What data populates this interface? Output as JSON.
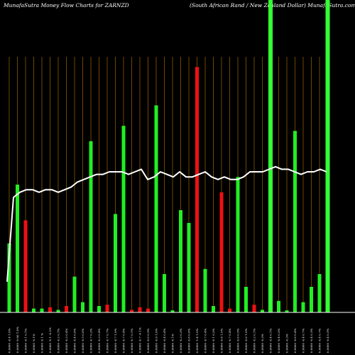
{
  "chart_data": {
    "type": "bar",
    "title_left": "MunafaSutra  Money Flow  Charts for ZARNZD",
    "title_right": "(South African  Rand / New  Zealand Dollar) MunafaSutra.com",
    "background": "#000000",
    "colors": {
      "up": "#22ee22",
      "down": "#ee1111",
      "gridline": "#8a5a00",
      "highlight": "#33ff33",
      "price_line": "#ffffff"
    },
    "ylim": [
      0,
      100
    ],
    "bars": [
      {
        "label": "0.0000 -0.4 1.0%",
        "value": 27,
        "color": "up"
      },
      {
        "label": "0.0000 -0.86 1.0%",
        "value": 50,
        "color": "up"
      },
      {
        "label": "0.0000 -0.1 0.1%",
        "value": 36,
        "color": "down"
      },
      {
        "label": "0.0000 -0.1%",
        "value": 1.5,
        "color": "up"
      },
      {
        "label": "0.0000 -0.1 %",
        "value": 1.5,
        "color": "up"
      },
      {
        "label": "0.0000 -0.1 -0.2%",
        "value": 2,
        "color": "down"
      },
      {
        "label": "0.0000 -0.2 0.1%",
        "value": 1,
        "color": "up"
      },
      {
        "label": "0.0000 -0.3 0.4%",
        "value": 2.5,
        "color": "down"
      },
      {
        "label": "0.0000 -0.4 0.6%",
        "value": 14,
        "color": "up"
      },
      {
        "label": "0.0000 -0.5 0.6%",
        "value": 4,
        "color": "up"
      },
      {
        "label": "0.0000 -0.7 0.2%",
        "value": 67,
        "color": "up"
      },
      {
        "label": "0.0000 -0.3 0.4%",
        "value": 2.5,
        "color": "up"
      },
      {
        "label": "0.0000 -0.7 0.7%",
        "value": 3,
        "color": "down"
      },
      {
        "label": "0.0000 -0.7 1.0%",
        "value": 38.5,
        "color": "up"
      },
      {
        "label": "0.0000 -0.7 0.4%",
        "value": 73,
        "color": "up"
      },
      {
        "label": "0.0000 -0.7 0.1%",
        "value": 1,
        "color": "down"
      },
      {
        "label": "0.0000 -0.7 -0.1%",
        "value": 2,
        "color": "down"
      },
      {
        "label": "0.0000 -0.0 0.5%",
        "value": 1.5,
        "color": "down"
      },
      {
        "label": "0.0000 -0.9 1.0%",
        "value": 81,
        "color": "up"
      },
      {
        "label": "0.0000 -0.4 0.4%",
        "value": 15,
        "color": "up"
      },
      {
        "label": "0.0000 -0.1%",
        "value": 0.8,
        "color": "up"
      },
      {
        "label": "0.0000 -0.3 0.3%",
        "value": 40,
        "color": "up"
      },
      {
        "label": "0.0000 -0.8 0.6%",
        "value": 35,
        "color": "up"
      },
      {
        "label": "0.0000 -1.4 1.0%",
        "value": 96,
        "color": "down"
      },
      {
        "label": "0.0000 -0.7 0.4%",
        "value": 17,
        "color": "up"
      },
      {
        "label": "0.0000 -0.1 0.2%",
        "value": 2.5,
        "color": "up"
      },
      {
        "label": "0.0000 -0.8 1.0%",
        "value": 47,
        "color": "down"
      },
      {
        "label": "0.0000 -0.7 0.4%",
        "value": 1.5,
        "color": "down"
      },
      {
        "label": "0.0000 -0.6 0.5%",
        "value": 53,
        "color": "up"
      },
      {
        "label": "0.0000 -0.6 1.0%",
        "value": 10,
        "color": "up"
      },
      {
        "label": "0.0000 -0.2 0.1%",
        "value": 3,
        "color": "down"
      },
      {
        "label": "0.0000 -0.3%",
        "value": 1,
        "color": "up"
      },
      {
        "label": "0.0000 -0.4 0.1%",
        "value": 100,
        "color": "highlight"
      },
      {
        "label": "0.0000 -0.4 0.2%",
        "value": 4.5,
        "color": "up"
      },
      {
        "label": "0.0000 -0.3%",
        "value": 0.8,
        "color": "up"
      },
      {
        "label": "0.0000 -0.6 0.4%",
        "value": 71,
        "color": "up"
      },
      {
        "label": "0.0000 -0.4 0.7%",
        "value": 4,
        "color": "up"
      },
      {
        "label": "0.0000 -0.4 0.3%",
        "value": 10,
        "color": "up"
      },
      {
        "label": "0.0000 -0.4 0.7%",
        "value": 15,
        "color": "up"
      },
      {
        "label": "0.0000 -0.4 0.5%",
        "value": 100,
        "color": "highlight"
      }
    ],
    "price_line": [
      12,
      45,
      47,
      48,
      48,
      47,
      48,
      48,
      47,
      48,
      49,
      51,
      52,
      53,
      54,
      54,
      55,
      55,
      55,
      54,
      55,
      56,
      52,
      53,
      55,
      54,
      53,
      55,
      53,
      53,
      54,
      55,
      53,
      52,
      53,
      52,
      52,
      53,
      55,
      55,
      55,
      56,
      57,
      56,
      56,
      55,
      54,
      55,
      55,
      56,
      55
    ]
  }
}
